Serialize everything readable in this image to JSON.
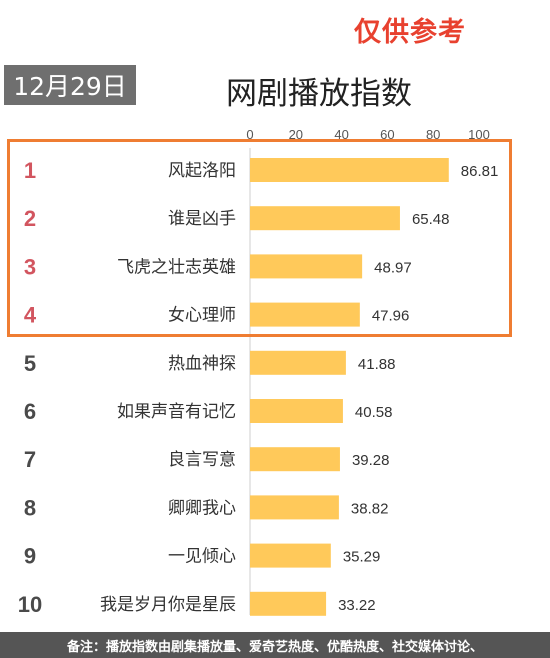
{
  "stamp": "仅供参考",
  "date_label": "12月29日",
  "footer_note": "备注：播放指数由剧集播放量、爱奇艺热度、优酷热度、社交媒体讨论、",
  "colors": {
    "bar": "#ffc95a",
    "rank_top": "#d2555f",
    "rank_other": "#4a4a4a",
    "highlight": "#ef7d32"
  },
  "chart_data": {
    "type": "bar",
    "orientation": "horizontal",
    "title": "网剧播放指数",
    "xlim": [
      0,
      100
    ],
    "x_ticks": [
      0,
      20,
      40,
      60,
      80,
      100
    ],
    "ranks": [
      "1",
      "2",
      "3",
      "4",
      "5",
      "6",
      "7",
      "8",
      "9",
      "10"
    ],
    "categories": [
      "风起洛阳",
      "谁是凶手",
      "飞虎之壮志英雄",
      "女心理师",
      "热血神探",
      "如果声音有记忆",
      "良言写意",
      "卿卿我心",
      "一见倾心",
      "我是岁月你是星辰"
    ],
    "values": [
      86.81,
      65.48,
      48.97,
      47.96,
      41.88,
      40.58,
      39.28,
      38.82,
      35.29,
      33.22
    ],
    "value_labels": [
      "86.81",
      "65.48",
      "48.97",
      "47.96",
      "41.88",
      "40.58",
      "39.28",
      "38.82",
      "35.29",
      "33.22"
    ],
    "highlighted_ranks": [
      1,
      2,
      3,
      4
    ]
  }
}
